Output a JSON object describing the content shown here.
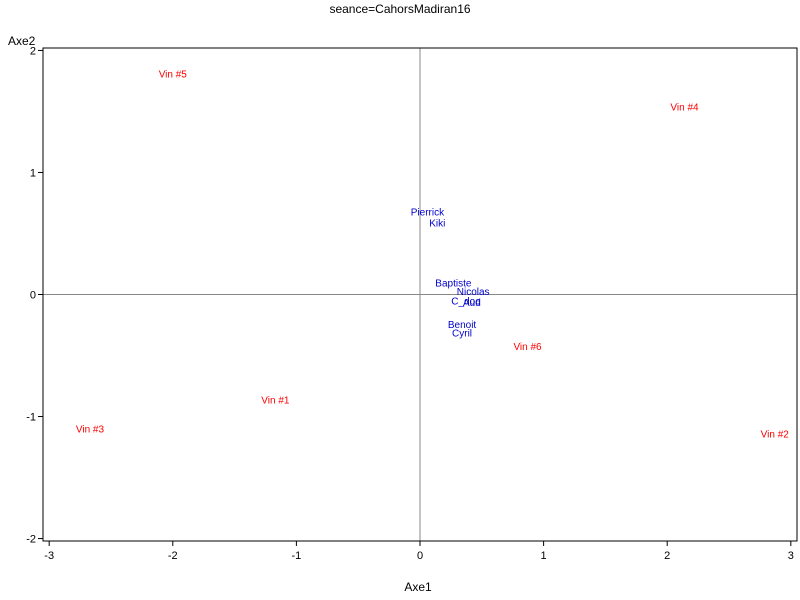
{
  "chart_data": {
    "type": "scatter",
    "title": "seance=CahorsMadiran16",
    "xlabel": "Axe1",
    "ylabel": "Axe2",
    "xlim": [
      -3.05,
      3.05
    ],
    "ylim": [
      -2.02,
      2.02
    ],
    "xticks": [
      -3,
      -2,
      -1,
      0,
      1,
      2,
      3
    ],
    "yticks": [
      -2,
      -1,
      0,
      1,
      2
    ],
    "reference_lines": {
      "x": 0,
      "y": 0
    },
    "colors": {
      "wines": "#ff0000",
      "tasters": "#0000cc",
      "frame": "#000000",
      "ref": "#888888"
    },
    "series": [
      {
        "group": "wines",
        "points": [
          {
            "label": "Vin #5",
            "x": -2.0,
            "y": 1.81
          },
          {
            "label": "Vin #4",
            "x": 2.14,
            "y": 1.54
          },
          {
            "label": "Vin #6",
            "x": 0.87,
            "y": -0.42
          },
          {
            "label": "Vin #1",
            "x": -1.17,
            "y": -0.86
          },
          {
            "label": "Vin #3",
            "x": -2.67,
            "y": -1.1
          },
          {
            "label": "Vin #2",
            "x": 2.87,
            "y": -1.14
          }
        ]
      },
      {
        "group": "tasters",
        "points": [
          {
            "label": "Pierrick",
            "x": 0.06,
            "y": 0.68
          },
          {
            "label": "Kiki",
            "x": 0.14,
            "y": 0.59
          },
          {
            "label": "Baptiste",
            "x": 0.27,
            "y": 0.1
          },
          {
            "label": "Nicolas",
            "x": 0.43,
            "y": 0.03
          },
          {
            "label": "C_doc",
            "x": 0.37,
            "y": -0.05
          },
          {
            "label": "Aud",
            "x": 0.42,
            "y": -0.06
          },
          {
            "label": "Benoit",
            "x": 0.34,
            "y": -0.24
          },
          {
            "label": "Cyril",
            "x": 0.34,
            "y": -0.31
          }
        ]
      }
    ]
  }
}
